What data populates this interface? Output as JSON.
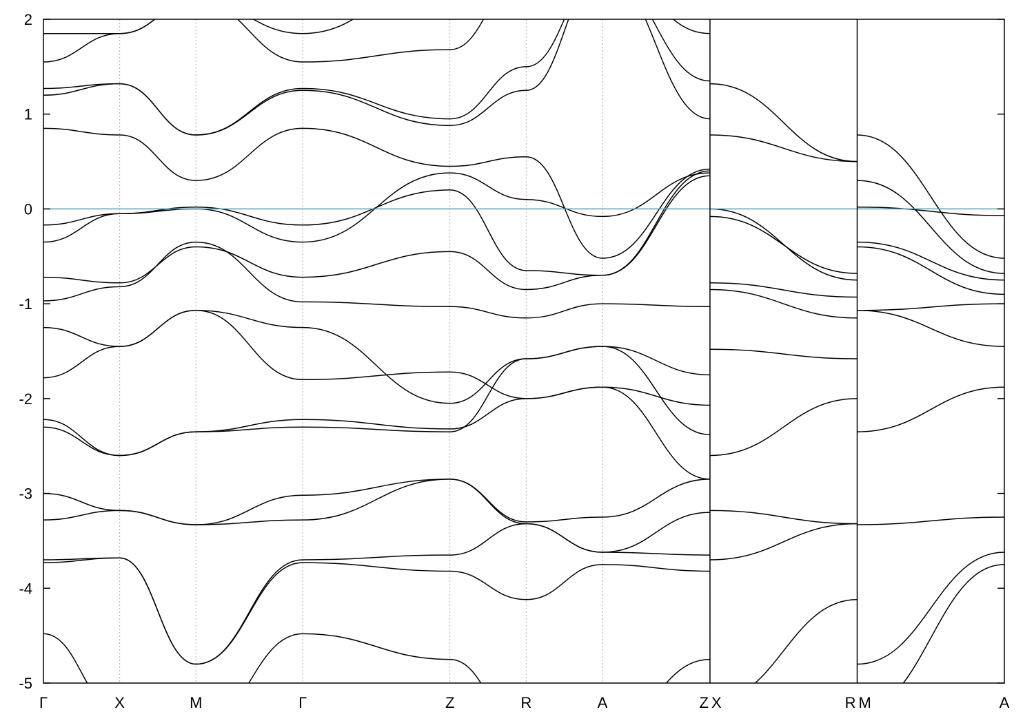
{
  "chart_data": {
    "type": "line",
    "title": "",
    "xlabel": "",
    "ylabel": "",
    "ylim": [
      -5,
      2
    ],
    "y_ticks": [
      {
        "value": 2,
        "label": "2"
      },
      {
        "value": 1,
        "label": "1"
      },
      {
        "value": 0,
        "label": "0"
      },
      {
        "value": -1,
        "label": "-1"
      },
      {
        "value": -2,
        "label": "-2"
      },
      {
        "value": -3,
        "label": "-3"
      },
      {
        "value": -4,
        "label": "-4"
      },
      {
        "value": -5,
        "label": "-5"
      }
    ],
    "xlim": [
      0,
      12.6
    ],
    "high_symmetry_points": [
      {
        "x": 0.0,
        "label": "Γ"
      },
      {
        "x": 1.0,
        "label": "X"
      },
      {
        "x": 2.0,
        "label": "M"
      },
      {
        "x": 3.4,
        "label": "Γ"
      },
      {
        "x": 5.33,
        "label": "Z"
      },
      {
        "x": 6.33,
        "label": "R"
      },
      {
        "x": 7.33,
        "label": "A"
      },
      {
        "x": 8.74,
        "label": "Z"
      },
      {
        "x": 8.74,
        "label": "X"
      },
      {
        "x": 10.67,
        "label": "R"
      },
      {
        "x": 10.67,
        "label": "M"
      },
      {
        "x": 12.6,
        "label": "A"
      }
    ],
    "path_breaks": [
      8.74,
      10.67
    ],
    "fermi_level": 0,
    "grid": "vertical dashed lines at high-symmetry points",
    "colors": {
      "bands": "#000000",
      "fermi": "#4aa3bf",
      "grid": "#aaaaaa"
    },
    "series": [
      {
        "x": [
          0,
          1,
          2,
          3.4,
          5.33,
          6.33,
          7.33,
          8.74
        ],
        "y": [
          -0.72,
          -0.78,
          -0.4,
          -0.72,
          -0.45,
          -0.85,
          -0.7,
          0.4
        ]
      },
      {
        "x": [
          0,
          1,
          2,
          3.4,
          5.33,
          6.33,
          7.33,
          8.74
        ],
        "y": [
          -0.97,
          -0.82,
          -0.35,
          -0.98,
          -1.03,
          -1.15,
          -1.0,
          -1.03
        ]
      },
      {
        "x": [
          0,
          1,
          2,
          3.4,
          5.33,
          6.33,
          7.33,
          8.74
        ],
        "y": [
          -1.25,
          -1.45,
          -1.07,
          -1.25,
          -2.05,
          -1.58,
          -1.45,
          -1.75
        ]
      },
      {
        "x": [
          0,
          1,
          2,
          3.4,
          5.33,
          6.33,
          7.33,
          8.74
        ],
        "y": [
          -1.78,
          -1.45,
          -1.07,
          -1.8,
          -1.72,
          -2.0,
          -1.88,
          -2.07
        ]
      },
      {
        "x": [
          0,
          1,
          2,
          3.4,
          5.33,
          6.33,
          7.33,
          8.74
        ],
        "y": [
          -2.3,
          -2.6,
          -2.35,
          -2.3,
          -2.35,
          -1.58,
          -1.45,
          -2.38
        ]
      },
      {
        "x": [
          0,
          1,
          2,
          3.4,
          5.33,
          6.33,
          7.33,
          8.74
        ],
        "y": [
          -2.22,
          -2.6,
          -2.35,
          -2.22,
          -2.32,
          -2.0,
          -1.88,
          -2.85
        ]
      },
      {
        "x": [
          0,
          1,
          2,
          3.4,
          5.33,
          6.33,
          7.33,
          8.74
        ],
        "y": [
          -3.0,
          -3.18,
          -3.33,
          -3.02,
          -2.85,
          -3.3,
          -3.25,
          -2.85
        ]
      },
      {
        "x": [
          0,
          1,
          2,
          3.4,
          5.33,
          6.33,
          7.33,
          8.74
        ],
        "y": [
          -3.28,
          -3.18,
          -3.33,
          -3.28,
          -2.85,
          -3.32,
          -3.62,
          -3.2
        ]
      },
      {
        "x": [
          0,
          1,
          2,
          3.4,
          5.33,
          6.33,
          7.33,
          8.74
        ],
        "y": [
          -3.7,
          -3.68,
          -4.8,
          -3.7,
          -3.65,
          -3.32,
          -3.62,
          -3.65
        ]
      },
      {
        "x": [
          0,
          1,
          2,
          3.4,
          5.33,
          6.33,
          7.33,
          8.74
        ],
        "y": [
          -3.73,
          -3.68,
          -4.8,
          -3.73,
          -3.82,
          -4.12,
          -3.75,
          -3.82
        ]
      },
      {
        "x": [
          0,
          1,
          2,
          3.4,
          5.33,
          6.33,
          7.33,
          8.74
        ],
        "y": [
          -4.48,
          -5.3,
          -5.5,
          -4.48,
          -4.75,
          -5.5,
          -5.5,
          -4.75
        ]
      },
      {
        "x": [
          0,
          1,
          2,
          3.4,
          5.33,
          6.33,
          7.33,
          8.74
        ],
        "y": [
          -0.17,
          -0.05,
          0.02,
          -0.17,
          0.2,
          -0.65,
          -0.7,
          0.35
        ]
      },
      {
        "x": [
          0,
          1,
          2,
          3.4,
          5.33,
          6.33,
          7.33,
          8.74
        ],
        "y": [
          -0.35,
          -0.05,
          0.0,
          -0.35,
          0.38,
          0.1,
          -0.08,
          0.38
        ]
      },
      {
        "x": [
          0,
          1,
          2,
          3.4,
          5.33,
          6.33,
          7.33,
          8.74
        ],
        "y": [
          0.85,
          0.78,
          0.3,
          0.85,
          0.45,
          0.55,
          -0.52,
          0.42
        ]
      },
      {
        "x": [
          0,
          1,
          2,
          3.4,
          5.33,
          6.33,
          7.33,
          8.74
        ],
        "y": [
          1.2,
          1.32,
          0.78,
          1.25,
          0.88,
          1.25,
          2.5,
          1.35
        ]
      },
      {
        "x": [
          0,
          1,
          2,
          3.4,
          5.33,
          6.33,
          7.33,
          8.74
        ],
        "y": [
          1.27,
          1.32,
          0.78,
          1.27,
          0.95,
          1.5,
          2.5,
          0.95
        ]
      },
      {
        "x": [
          0,
          1,
          2,
          3.4,
          5.33,
          6.33,
          7.33,
          8.74
        ],
        "y": [
          1.55,
          1.85,
          2.2,
          1.55,
          1.68,
          2.5,
          2.5,
          1.85
        ]
      },
      {
        "x": [
          0,
          1,
          2,
          3.4,
          5.33,
          6.33,
          7.33,
          8.74
        ],
        "y": [
          1.85,
          1.85,
          2.2,
          1.85,
          2.5,
          2.5,
          2.5,
          2.2
        ]
      },
      {
        "x": [
          8.74,
          10.67
        ],
        "y": [
          1.32,
          0.5
        ]
      },
      {
        "x": [
          8.74,
          10.67
        ],
        "y": [
          0.78,
          0.5
        ]
      },
      {
        "x": [
          8.74,
          10.67
        ],
        "y": [
          0.0,
          -0.75
        ]
      },
      {
        "x": [
          8.74,
          10.67
        ],
        "y": [
          -0.08,
          -0.68
        ]
      },
      {
        "x": [
          8.74,
          10.67
        ],
        "y": [
          -0.78,
          -0.93
        ]
      },
      {
        "x": [
          8.74,
          10.67
        ],
        "y": [
          -0.85,
          -1.15
        ]
      },
      {
        "x": [
          8.74,
          10.67
        ],
        "y": [
          -1.48,
          -1.58
        ]
      },
      {
        "x": [
          8.74,
          10.67
        ],
        "y": [
          -2.6,
          -2.0
        ]
      },
      {
        "x": [
          8.74,
          10.67
        ],
        "y": [
          -3.18,
          -3.32
        ]
      },
      {
        "x": [
          8.74,
          10.67
        ],
        "y": [
          -3.7,
          -3.32
        ]
      },
      {
        "x": [
          8.74,
          10.67
        ],
        "y": [
          -5.2,
          -4.12
        ]
      },
      {
        "x": [
          10.67,
          12.6
        ],
        "y": [
          0.78,
          -0.52
        ]
      },
      {
        "x": [
          10.67,
          12.6
        ],
        "y": [
          0.3,
          -0.68
        ]
      },
      {
        "x": [
          10.67,
          12.6
        ],
        "y": [
          0.02,
          -0.07
        ]
      },
      {
        "x": [
          10.67,
          12.6
        ],
        "y": [
          -0.35,
          -0.75
        ]
      },
      {
        "x": [
          10.67,
          12.6
        ],
        "y": [
          -0.4,
          -0.9
        ]
      },
      {
        "x": [
          10.67,
          12.6
        ],
        "y": [
          -1.07,
          -1.0
        ]
      },
      {
        "x": [
          10.67,
          12.6
        ],
        "y": [
          -1.07,
          -1.45
        ]
      },
      {
        "x": [
          10.67,
          12.6
        ],
        "y": [
          -2.35,
          -1.88
        ]
      },
      {
        "x": [
          10.67,
          12.6
        ],
        "y": [
          -3.33,
          -3.25
        ]
      },
      {
        "x": [
          10.67,
          12.6
        ],
        "y": [
          -4.8,
          -3.62
        ]
      },
      {
        "x": [
          10.67,
          12.6
        ],
        "y": [
          -5.3,
          -3.75
        ]
      }
    ]
  }
}
